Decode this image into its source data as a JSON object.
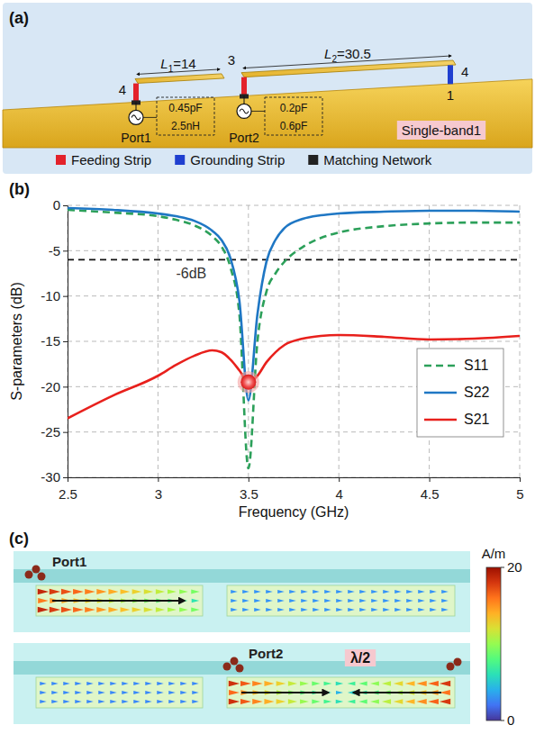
{
  "panel_a": {
    "label": "(a)",
    "dim_L1": {
      "name": "L",
      "sub": "1",
      "value": "=14"
    },
    "dim_L2": {
      "name": "L",
      "sub": "2",
      "value": "=30.5"
    },
    "gap": "3",
    "height_left": "4",
    "height_right": "4",
    "ground_width": "1",
    "ports": [
      "Port1",
      "Port2"
    ],
    "networks": [
      [
        "0.45pF",
        "2.5nH"
      ],
      [
        "0.2pF",
        "0.6pF"
      ]
    ],
    "tag": "Single-band1",
    "legend": [
      {
        "label": "Feeding Strip",
        "color": "#e3222b"
      },
      {
        "label": "Grounding Strip",
        "color": "#1f3fd0"
      },
      {
        "label": "Matching Network",
        "color": "#222222"
      }
    ]
  },
  "chart_data": {
    "type": "line",
    "panel_label": "(b)",
    "x_label": "Frequency (GHz)",
    "y_label": "S-parameters (dB)",
    "x": [
      2.5,
      2.75,
      3.0,
      3.1,
      3.2,
      3.3,
      3.35,
      3.4,
      3.45,
      3.5,
      3.55,
      3.6,
      3.65,
      3.7,
      3.8,
      3.9,
      4.0,
      4.25,
      4.5,
      4.75,
      5.0
    ],
    "series": [
      {
        "name": "S11",
        "color": "#2ca05a",
        "line_style": "dashed",
        "values": [
          -0.5,
          -0.8,
          -1.2,
          -1.6,
          -2.2,
          -3.4,
          -4.5,
          -6.8,
          -12,
          -29,
          -15,
          -9.5,
          -7.5,
          -6.2,
          -4.6,
          -3.6,
          -3.0,
          -2.3,
          -2.0,
          -1.9,
          -1.9
        ]
      },
      {
        "name": "S22",
        "color": "#1f77c4",
        "line_style": "solid",
        "values": [
          -0.3,
          -0.5,
          -0.9,
          -1.2,
          -1.7,
          -2.8,
          -3.8,
          -5.8,
          -10.5,
          -21.5,
          -12,
          -6.2,
          -3.8,
          -2.5,
          -1.5,
          -1.1,
          -0.9,
          -0.7,
          -0.6,
          -0.6,
          -0.7
        ]
      },
      {
        "name": "S21",
        "color": "#e8201c",
        "line_style": "solid",
        "values": [
          -23.5,
          -21,
          -18.8,
          -17.6,
          -16.6,
          -16.0,
          -16.2,
          -17,
          -18.2,
          -19.5,
          -18.8,
          -17.3,
          -16.2,
          -15.4,
          -14.7,
          -14.4,
          -14.3,
          -14.5,
          -14.8,
          -14.7,
          -14.4
        ]
      }
    ],
    "xlim": [
      2.5,
      5
    ],
    "xticks": [
      2.5,
      3,
      3.5,
      4,
      4.5,
      5
    ],
    "ylim": [
      -30,
      0
    ],
    "yticks": [
      0,
      -5,
      -10,
      -15,
      -20,
      -25,
      -30
    ],
    "grid": true,
    "legend": "lower right",
    "reference_line": {
      "y": -6,
      "label": "-6dB"
    },
    "highlight": {
      "x": 3.5,
      "y": -19.5
    }
  },
  "panel_c": {
    "label": "(c)",
    "images": [
      {
        "port": "Port1"
      },
      {
        "port": "Port2",
        "note": "λ/2"
      }
    ],
    "colorbar": {
      "title": "A/m",
      "min": 0,
      "max": 20,
      "ticks": [
        0,
        20
      ]
    }
  }
}
